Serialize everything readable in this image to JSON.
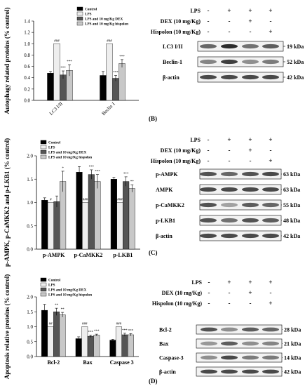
{
  "colors": {
    "control": "#000000",
    "lps": "#eeeeee",
    "dex": "#555555",
    "hispolon": "#c8c8c8",
    "blot_band": "#2b2b2b"
  },
  "panel_labels": {
    "b": "(B)",
    "c": "(C)",
    "d": "(D)"
  },
  "blots": [
    {
      "id": "blot1",
      "conditions": [
        {
          "label": "LPS",
          "marks": [
            "-",
            "+",
            "+",
            "+"
          ]
        },
        {
          "label": "DEX (10 mg/Kg)",
          "marks": [
            "-",
            "-",
            "+",
            "-"
          ]
        },
        {
          "label": "Hispolon (10 mg/Kg)",
          "marks": [
            "-",
            "-",
            "-",
            "+"
          ]
        }
      ],
      "bands": [
        {
          "label": "LC3 I/II",
          "kda": "19 kDa"
        },
        {
          "label": "Beclin-1",
          "kda": "52 kDa"
        },
        {
          "label": "β-actin",
          "kda": "42 kDa"
        }
      ]
    },
    {
      "id": "blot2",
      "conditions": [
        {
          "label": "LPS",
          "marks": [
            "-",
            "+",
            "+",
            "+"
          ]
        },
        {
          "label": "DEX (10 mg/Kg)",
          "marks": [
            "-",
            "-",
            "+",
            "-"
          ]
        },
        {
          "label": "Hispolon (10 mg/Kg)",
          "marks": [
            "-",
            "-",
            "-",
            "+"
          ]
        }
      ],
      "bands": [
        {
          "label": "p-AMPK",
          "kda": "63 kDa"
        },
        {
          "label": "AMPK",
          "kda": "63 kDa"
        },
        {
          "label": "p-CaMKK2",
          "kda": "55 kDa"
        },
        {
          "label": "p-LKB1",
          "kda": "48 kDa"
        },
        {
          "label": "β-actin",
          "kda": "42 kDa"
        }
      ]
    },
    {
      "id": "blot3",
      "conditions": [
        {
          "label": "LPS",
          "marks": [
            "-",
            "+",
            "+",
            "+"
          ]
        },
        {
          "label": "DEX (10 mg/Kg)",
          "marks": [
            "-",
            "-",
            "+",
            "-"
          ]
        },
        {
          "label": "Hispolon (10 mg/Kg)",
          "marks": [
            "-",
            "-",
            "-",
            "+"
          ]
        }
      ],
      "bands": [
        {
          "label": "Bcl-2",
          "kda": "28 kDa"
        },
        {
          "label": "Bax",
          "kda": "21 kDa"
        },
        {
          "label": "Caspase-3",
          "kda": "14 kDa"
        },
        {
          "label": "β-actin",
          "kda": "42 kDa"
        }
      ]
    }
  ],
  "chart_data": [
    {
      "type": "bar",
      "title": "",
      "xlabel": "",
      "ylabel": "Autophagy related proteins (% control)",
      "ylim": [
        0,
        1.4
      ],
      "yticks": [
        "0.0",
        "0.2",
        "0.4",
        "0.6",
        "0.8",
        "1.0",
        "1.2",
        "1.4"
      ],
      "categories": [
        "LC3 I/II",
        "Beclin 1"
      ],
      "legend": [
        "Control",
        "LPS",
        "LPS and 10 mg/Kg DEX",
        "LPS and 10 mg/Kg hispolon"
      ],
      "series": [
        {
          "name": "Control",
          "values": [
            0.48,
            0.44
          ],
          "errors": [
            0.03,
            0.07
          ]
        },
        {
          "name": "LPS",
          "values": [
            1.0,
            1.0
          ],
          "errors": [
            0.0,
            0.0
          ]
        },
        {
          "name": "LPS and 10 mg/Kg DEX",
          "values": [
            0.45,
            0.39
          ],
          "errors": [
            0.07,
            0.05
          ]
        },
        {
          "name": "LPS and 10 mg/Kg hispolon",
          "values": [
            0.53,
            0.65
          ],
          "errors": [
            0.1,
            0.07
          ]
        }
      ],
      "annotations": [
        {
          "cat": 0,
          "series": 1,
          "text": "###"
        },
        {
          "cat": 0,
          "series": 2,
          "text": "***"
        },
        {
          "cat": 0,
          "series": 3,
          "text": "***"
        },
        {
          "cat": 1,
          "series": 1,
          "text": "###"
        },
        {
          "cat": 1,
          "series": 2,
          "text": "***"
        },
        {
          "cat": 1,
          "series": 3,
          "text": "***"
        }
      ]
    },
    {
      "type": "bar",
      "title": "",
      "xlabel": "",
      "ylabel": "p-AMPK, p-CaMKK2 and p-LKB1 (% control)",
      "ylim": [
        0,
        2.0
      ],
      "yticks": [
        "0.0",
        "0.5",
        "1.0",
        "1.5",
        "2.0"
      ],
      "categories": [
        "p-AMPK",
        "p-CaMKK2",
        "p-LKB1"
      ],
      "legend": [
        "Control",
        "LPS",
        "LPS and 10 mg/Kg DEX",
        "LPS and 10 mg/Kg hispolon"
      ],
      "series": [
        {
          "name": "Control",
          "values": [
            1.05,
            1.65,
            1.5
          ],
          "errors": [
            0.05,
            0.12,
            0.04
          ]
        },
        {
          "name": "LPS",
          "values": [
            1.0,
            1.0,
            1.0
          ],
          "errors": [
            0.0,
            0.0,
            0.0
          ]
        },
        {
          "name": "LPS and 10 mg/Kg DEX",
          "values": [
            1.02,
            1.6,
            1.45
          ],
          "errors": [
            0.12,
            0.1,
            0.1
          ]
        },
        {
          "name": "LPS and 10 mg/Kg hispolon",
          "values": [
            1.45,
            1.45,
            1.3
          ],
          "errors": [
            0.22,
            0.15,
            0.08
          ]
        }
      ],
      "annotations": [
        {
          "cat": 0,
          "series": 1,
          "text": "#"
        },
        {
          "cat": 0,
          "series": 3,
          "text": "*"
        },
        {
          "cat": 1,
          "series": 1,
          "text": "###"
        },
        {
          "cat": 1,
          "series": 2,
          "text": "***"
        },
        {
          "cat": 1,
          "series": 3,
          "text": "***"
        },
        {
          "cat": 2,
          "series": 1,
          "text": "###"
        },
        {
          "cat": 2,
          "series": 2,
          "text": "***"
        },
        {
          "cat": 2,
          "series": 3,
          "text": "**"
        }
      ]
    },
    {
      "type": "bar",
      "title": "",
      "xlabel": "",
      "ylabel": "Apoptosis relative proteins (% control)",
      "ylim": [
        0,
        2.0
      ],
      "yticks": [
        "0.0",
        "0.5",
        "1.0",
        "1.5",
        "2.0"
      ],
      "categories": [
        "Bcl-2",
        "Bax",
        "Caspase 3"
      ],
      "legend": [
        "Control",
        "LPS",
        "LPS and 10 mg/Kg DEX",
        "LPS and 10 mg/Kg hispolon"
      ],
      "series": [
        {
          "name": "Control",
          "values": [
            1.55,
            0.6,
            0.55
          ],
          "errors": [
            0.2,
            0.06,
            0.03
          ]
        },
        {
          "name": "LPS",
          "values": [
            1.0,
            1.0,
            1.0
          ],
          "errors": [
            0.0,
            0.0,
            0.0
          ]
        },
        {
          "name": "LPS and 10 mg/Kg DEX",
          "values": [
            1.5,
            0.68,
            0.73
          ],
          "errors": [
            0.12,
            0.04,
            0.05
          ]
        },
        {
          "name": "LPS and 10 mg/Kg hispolon",
          "values": [
            1.4,
            0.72,
            0.73
          ],
          "errors": [
            0.08,
            0.03,
            0.04
          ]
        }
      ],
      "annotations": [
        {
          "cat": 0,
          "series": 1,
          "text": "##"
        },
        {
          "cat": 0,
          "series": 2,
          "text": "**"
        },
        {
          "cat": 0,
          "series": 3,
          "text": "**"
        },
        {
          "cat": 1,
          "series": 1,
          "text": "###"
        },
        {
          "cat": 1,
          "series": 2,
          "text": "***"
        },
        {
          "cat": 1,
          "series": 3,
          "text": "***"
        },
        {
          "cat": 2,
          "series": 1,
          "text": "###"
        },
        {
          "cat": 2,
          "series": 2,
          "text": "***"
        },
        {
          "cat": 2,
          "series": 3,
          "text": "***"
        }
      ]
    }
  ]
}
